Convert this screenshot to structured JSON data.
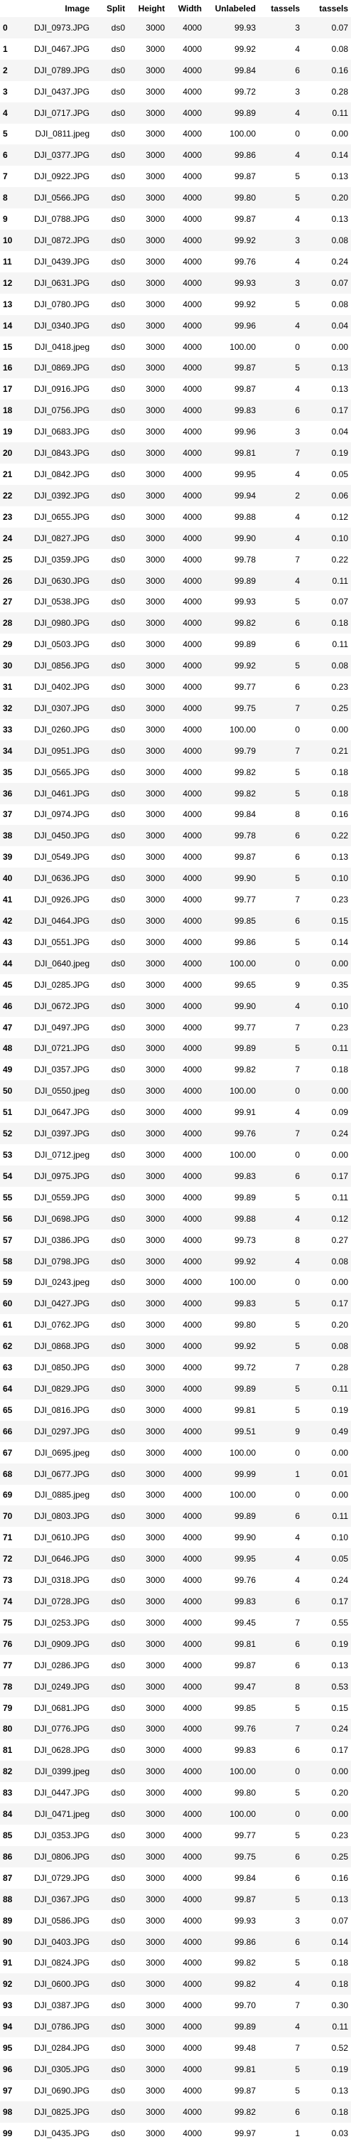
{
  "table": {
    "headers": [
      "",
      "Image",
      "Split",
      "Height",
      "Width",
      "Unlabeled",
      "tassels",
      "tassels"
    ],
    "rows": [
      [
        "0",
        "DJI_0973.JPG",
        "ds0",
        "3000",
        "4000",
        "99.93",
        "3",
        "0.07"
      ],
      [
        "1",
        "DJI_0467.JPG",
        "ds0",
        "3000",
        "4000",
        "99.92",
        "4",
        "0.08"
      ],
      [
        "2",
        "DJI_0789.JPG",
        "ds0",
        "3000",
        "4000",
        "99.84",
        "6",
        "0.16"
      ],
      [
        "3",
        "DJI_0437.JPG",
        "ds0",
        "3000",
        "4000",
        "99.72",
        "3",
        "0.28"
      ],
      [
        "4",
        "DJI_0717.JPG",
        "ds0",
        "3000",
        "4000",
        "99.89",
        "4",
        "0.11"
      ],
      [
        "5",
        "DJI_0811.jpeg",
        "ds0",
        "3000",
        "4000",
        "100.00",
        "0",
        "0.00"
      ],
      [
        "6",
        "DJI_0377.JPG",
        "ds0",
        "3000",
        "4000",
        "99.86",
        "4",
        "0.14"
      ],
      [
        "7",
        "DJI_0922.JPG",
        "ds0",
        "3000",
        "4000",
        "99.87",
        "5",
        "0.13"
      ],
      [
        "8",
        "DJI_0566.JPG",
        "ds0",
        "3000",
        "4000",
        "99.80",
        "5",
        "0.20"
      ],
      [
        "9",
        "DJI_0788.JPG",
        "ds0",
        "3000",
        "4000",
        "99.87",
        "4",
        "0.13"
      ],
      [
        "10",
        "DJI_0872.JPG",
        "ds0",
        "3000",
        "4000",
        "99.92",
        "3",
        "0.08"
      ],
      [
        "11",
        "DJI_0439.JPG",
        "ds0",
        "3000",
        "4000",
        "99.76",
        "4",
        "0.24"
      ],
      [
        "12",
        "DJI_0631.JPG",
        "ds0",
        "3000",
        "4000",
        "99.93",
        "3",
        "0.07"
      ],
      [
        "13",
        "DJI_0780.JPG",
        "ds0",
        "3000",
        "4000",
        "99.92",
        "5",
        "0.08"
      ],
      [
        "14",
        "DJI_0340.JPG",
        "ds0",
        "3000",
        "4000",
        "99.96",
        "4",
        "0.04"
      ],
      [
        "15",
        "DJI_0418.jpeg",
        "ds0",
        "3000",
        "4000",
        "100.00",
        "0",
        "0.00"
      ],
      [
        "16",
        "DJI_0869.JPG",
        "ds0",
        "3000",
        "4000",
        "99.87",
        "5",
        "0.13"
      ],
      [
        "17",
        "DJI_0916.JPG",
        "ds0",
        "3000",
        "4000",
        "99.87",
        "4",
        "0.13"
      ],
      [
        "18",
        "DJI_0756.JPG",
        "ds0",
        "3000",
        "4000",
        "99.83",
        "6",
        "0.17"
      ],
      [
        "19",
        "DJI_0683.JPG",
        "ds0",
        "3000",
        "4000",
        "99.96",
        "3",
        "0.04"
      ],
      [
        "20",
        "DJI_0843.JPG",
        "ds0",
        "3000",
        "4000",
        "99.81",
        "7",
        "0.19"
      ],
      [
        "21",
        "DJI_0842.JPG",
        "ds0",
        "3000",
        "4000",
        "99.95",
        "4",
        "0.05"
      ],
      [
        "22",
        "DJI_0392.JPG",
        "ds0",
        "3000",
        "4000",
        "99.94",
        "2",
        "0.06"
      ],
      [
        "23",
        "DJI_0655.JPG",
        "ds0",
        "3000",
        "4000",
        "99.88",
        "4",
        "0.12"
      ],
      [
        "24",
        "DJI_0827.JPG",
        "ds0",
        "3000",
        "4000",
        "99.90",
        "4",
        "0.10"
      ],
      [
        "25",
        "DJI_0359.JPG",
        "ds0",
        "3000",
        "4000",
        "99.78",
        "7",
        "0.22"
      ],
      [
        "26",
        "DJI_0630.JPG",
        "ds0",
        "3000",
        "4000",
        "99.89",
        "4",
        "0.11"
      ],
      [
        "27",
        "DJI_0538.JPG",
        "ds0",
        "3000",
        "4000",
        "99.93",
        "5",
        "0.07"
      ],
      [
        "28",
        "DJI_0980.JPG",
        "ds0",
        "3000",
        "4000",
        "99.82",
        "6",
        "0.18"
      ],
      [
        "29",
        "DJI_0503.JPG",
        "ds0",
        "3000",
        "4000",
        "99.89",
        "6",
        "0.11"
      ],
      [
        "30",
        "DJI_0856.JPG",
        "ds0",
        "3000",
        "4000",
        "99.92",
        "5",
        "0.08"
      ],
      [
        "31",
        "DJI_0402.JPG",
        "ds0",
        "3000",
        "4000",
        "99.77",
        "6",
        "0.23"
      ],
      [
        "32",
        "DJI_0307.JPG",
        "ds0",
        "3000",
        "4000",
        "99.75",
        "7",
        "0.25"
      ],
      [
        "33",
        "DJI_0260.JPG",
        "ds0",
        "3000",
        "4000",
        "100.00",
        "0",
        "0.00"
      ],
      [
        "34",
        "DJI_0951.JPG",
        "ds0",
        "3000",
        "4000",
        "99.79",
        "7",
        "0.21"
      ],
      [
        "35",
        "DJI_0565.JPG",
        "ds0",
        "3000",
        "4000",
        "99.82",
        "5",
        "0.18"
      ],
      [
        "36",
        "DJI_0461.JPG",
        "ds0",
        "3000",
        "4000",
        "99.82",
        "5",
        "0.18"
      ],
      [
        "37",
        "DJI_0974.JPG",
        "ds0",
        "3000",
        "4000",
        "99.84",
        "8",
        "0.16"
      ],
      [
        "38",
        "DJI_0450.JPG",
        "ds0",
        "3000",
        "4000",
        "99.78",
        "6",
        "0.22"
      ],
      [
        "39",
        "DJI_0549.JPG",
        "ds0",
        "3000",
        "4000",
        "99.87",
        "6",
        "0.13"
      ],
      [
        "40",
        "DJI_0636.JPG",
        "ds0",
        "3000",
        "4000",
        "99.90",
        "5",
        "0.10"
      ],
      [
        "41",
        "DJI_0926.JPG",
        "ds0",
        "3000",
        "4000",
        "99.77",
        "7",
        "0.23"
      ],
      [
        "42",
        "DJI_0464.JPG",
        "ds0",
        "3000",
        "4000",
        "99.85",
        "6",
        "0.15"
      ],
      [
        "43",
        "DJI_0551.JPG",
        "ds0",
        "3000",
        "4000",
        "99.86",
        "5",
        "0.14"
      ],
      [
        "44",
        "DJI_0640.jpeg",
        "ds0",
        "3000",
        "4000",
        "100.00",
        "0",
        "0.00"
      ],
      [
        "45",
        "DJI_0285.JPG",
        "ds0",
        "3000",
        "4000",
        "99.65",
        "9",
        "0.35"
      ],
      [
        "46",
        "DJI_0672.JPG",
        "ds0",
        "3000",
        "4000",
        "99.90",
        "4",
        "0.10"
      ],
      [
        "47",
        "DJI_0497.JPG",
        "ds0",
        "3000",
        "4000",
        "99.77",
        "7",
        "0.23"
      ],
      [
        "48",
        "DJI_0721.JPG",
        "ds0",
        "3000",
        "4000",
        "99.89",
        "5",
        "0.11"
      ],
      [
        "49",
        "DJI_0357.JPG",
        "ds0",
        "3000",
        "4000",
        "99.82",
        "7",
        "0.18"
      ],
      [
        "50",
        "DJI_0550.jpeg",
        "ds0",
        "3000",
        "4000",
        "100.00",
        "0",
        "0.00"
      ],
      [
        "51",
        "DJI_0647.JPG",
        "ds0",
        "3000",
        "4000",
        "99.91",
        "4",
        "0.09"
      ],
      [
        "52",
        "DJI_0397.JPG",
        "ds0",
        "3000",
        "4000",
        "99.76",
        "7",
        "0.24"
      ],
      [
        "53",
        "DJI_0712.jpeg",
        "ds0",
        "3000",
        "4000",
        "100.00",
        "0",
        "0.00"
      ],
      [
        "54",
        "DJI_0975.JPG",
        "ds0",
        "3000",
        "4000",
        "99.83",
        "6",
        "0.17"
      ],
      [
        "55",
        "DJI_0559.JPG",
        "ds0",
        "3000",
        "4000",
        "99.89",
        "5",
        "0.11"
      ],
      [
        "56",
        "DJI_0698.JPG",
        "ds0",
        "3000",
        "4000",
        "99.88",
        "4",
        "0.12"
      ],
      [
        "57",
        "DJI_0386.JPG",
        "ds0",
        "3000",
        "4000",
        "99.73",
        "8",
        "0.27"
      ],
      [
        "58",
        "DJI_0798.JPG",
        "ds0",
        "3000",
        "4000",
        "99.92",
        "4",
        "0.08"
      ],
      [
        "59",
        "DJI_0243.jpeg",
        "ds0",
        "3000",
        "4000",
        "100.00",
        "0",
        "0.00"
      ],
      [
        "60",
        "DJI_0427.JPG",
        "ds0",
        "3000",
        "4000",
        "99.83",
        "5",
        "0.17"
      ],
      [
        "61",
        "DJI_0762.JPG",
        "ds0",
        "3000",
        "4000",
        "99.80",
        "5",
        "0.20"
      ],
      [
        "62",
        "DJI_0868.JPG",
        "ds0",
        "3000",
        "4000",
        "99.92",
        "5",
        "0.08"
      ],
      [
        "63",
        "DJI_0850.JPG",
        "ds0",
        "3000",
        "4000",
        "99.72",
        "7",
        "0.28"
      ],
      [
        "64",
        "DJI_0829.JPG",
        "ds0",
        "3000",
        "4000",
        "99.89",
        "5",
        "0.11"
      ],
      [
        "65",
        "DJI_0816.JPG",
        "ds0",
        "3000",
        "4000",
        "99.81",
        "5",
        "0.19"
      ],
      [
        "66",
        "DJI_0297.JPG",
        "ds0",
        "3000",
        "4000",
        "99.51",
        "9",
        "0.49"
      ],
      [
        "67",
        "DJI_0695.jpeg",
        "ds0",
        "3000",
        "4000",
        "100.00",
        "0",
        "0.00"
      ],
      [
        "68",
        "DJI_0677.JPG",
        "ds0",
        "3000",
        "4000",
        "99.99",
        "1",
        "0.01"
      ],
      [
        "69",
        "DJI_0885.jpeg",
        "ds0",
        "3000",
        "4000",
        "100.00",
        "0",
        "0.00"
      ],
      [
        "70",
        "DJI_0803.JPG",
        "ds0",
        "3000",
        "4000",
        "99.89",
        "6",
        "0.11"
      ],
      [
        "71",
        "DJI_0610.JPG",
        "ds0",
        "3000",
        "4000",
        "99.90",
        "4",
        "0.10"
      ],
      [
        "72",
        "DJI_0646.JPG",
        "ds0",
        "3000",
        "4000",
        "99.95",
        "4",
        "0.05"
      ],
      [
        "73",
        "DJI_0318.JPG",
        "ds0",
        "3000",
        "4000",
        "99.76",
        "4",
        "0.24"
      ],
      [
        "74",
        "DJI_0728.JPG",
        "ds0",
        "3000",
        "4000",
        "99.83",
        "6",
        "0.17"
      ],
      [
        "75",
        "DJI_0253.JPG",
        "ds0",
        "3000",
        "4000",
        "99.45",
        "7",
        "0.55"
      ],
      [
        "76",
        "DJI_0909.JPG",
        "ds0",
        "3000",
        "4000",
        "99.81",
        "6",
        "0.19"
      ],
      [
        "77",
        "DJI_0286.JPG",
        "ds0",
        "3000",
        "4000",
        "99.87",
        "6",
        "0.13"
      ],
      [
        "78",
        "DJI_0249.JPG",
        "ds0",
        "3000",
        "4000",
        "99.47",
        "8",
        "0.53"
      ],
      [
        "79",
        "DJI_0681.JPG",
        "ds0",
        "3000",
        "4000",
        "99.85",
        "5",
        "0.15"
      ],
      [
        "80",
        "DJI_0776.JPG",
        "ds0",
        "3000",
        "4000",
        "99.76",
        "7",
        "0.24"
      ],
      [
        "81",
        "DJI_0628.JPG",
        "ds0",
        "3000",
        "4000",
        "99.83",
        "6",
        "0.17"
      ],
      [
        "82",
        "DJI_0399.jpeg",
        "ds0",
        "3000",
        "4000",
        "100.00",
        "0",
        "0.00"
      ],
      [
        "83",
        "DJI_0447.JPG",
        "ds0",
        "3000",
        "4000",
        "99.80",
        "5",
        "0.20"
      ],
      [
        "84",
        "DJI_0471.jpeg",
        "ds0",
        "3000",
        "4000",
        "100.00",
        "0",
        "0.00"
      ],
      [
        "85",
        "DJI_0353.JPG",
        "ds0",
        "3000",
        "4000",
        "99.77",
        "5",
        "0.23"
      ],
      [
        "86",
        "DJI_0806.JPG",
        "ds0",
        "3000",
        "4000",
        "99.75",
        "6",
        "0.25"
      ],
      [
        "87",
        "DJI_0729.JPG",
        "ds0",
        "3000",
        "4000",
        "99.84",
        "6",
        "0.16"
      ],
      [
        "88",
        "DJI_0367.JPG",
        "ds0",
        "3000",
        "4000",
        "99.87",
        "5",
        "0.13"
      ],
      [
        "89",
        "DJI_0586.JPG",
        "ds0",
        "3000",
        "4000",
        "99.93",
        "3",
        "0.07"
      ],
      [
        "90",
        "DJI_0403.JPG",
        "ds0",
        "3000",
        "4000",
        "99.86",
        "6",
        "0.14"
      ],
      [
        "91",
        "DJI_0824.JPG",
        "ds0",
        "3000",
        "4000",
        "99.82",
        "5",
        "0.18"
      ],
      [
        "92",
        "DJI_0600.JPG",
        "ds0",
        "3000",
        "4000",
        "99.82",
        "4",
        "0.18"
      ],
      [
        "93",
        "DJI_0387.JPG",
        "ds0",
        "3000",
        "4000",
        "99.70",
        "7",
        "0.30"
      ],
      [
        "94",
        "DJI_0786.JPG",
        "ds0",
        "3000",
        "4000",
        "99.89",
        "4",
        "0.11"
      ],
      [
        "95",
        "DJI_0284.JPG",
        "ds0",
        "3000",
        "4000",
        "99.48",
        "7",
        "0.52"
      ],
      [
        "96",
        "DJI_0305.JPG",
        "ds0",
        "3000",
        "4000",
        "99.81",
        "5",
        "0.19"
      ],
      [
        "97",
        "DJI_0690.JPG",
        "ds0",
        "3000",
        "4000",
        "99.87",
        "5",
        "0.13"
      ],
      [
        "98",
        "DJI_0825.JPG",
        "ds0",
        "3000",
        "4000",
        "99.82",
        "6",
        "0.18"
      ],
      [
        "99",
        "DJI_0435.JPG",
        "ds0",
        "3000",
        "4000",
        "99.97",
        "1",
        "0.03"
      ]
    ]
  }
}
